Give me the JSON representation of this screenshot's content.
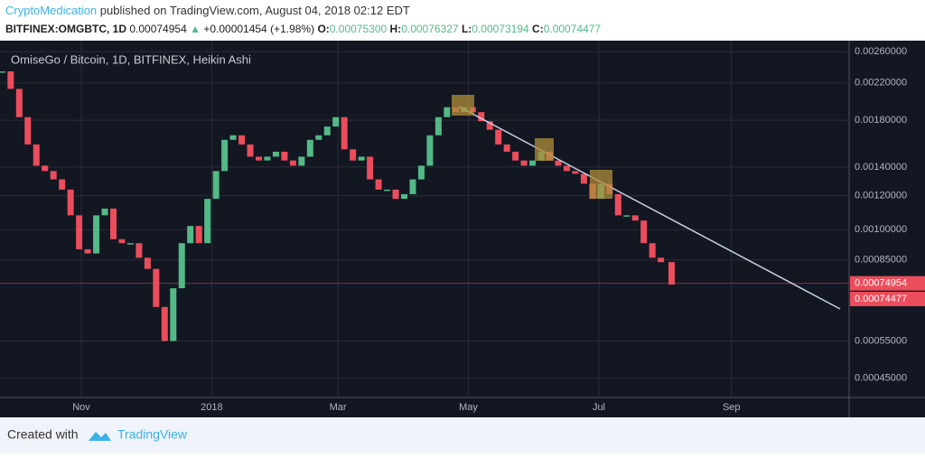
{
  "header": {
    "author": "CryptoMedication",
    "published": "published on TradingView.com, August 04, 2018 02:12 EDT",
    "symbol": "BITFINEX:OMGBTC, 1D",
    "last": "0.00074954",
    "arrow": "▲",
    "change": "+0.00001454 (+1.98%)",
    "open_label": "O:",
    "open": "0.00075300",
    "high_label": "H:",
    "high": "0.00076327",
    "low_label": "L:",
    "low": "0.00073194",
    "close_label": "C:",
    "close": "0.00074477"
  },
  "chart_data": {
    "type": "candlestick",
    "title": "OmiseGo / Bitcoin, 1D, BITFINEX, Heikin Ashi",
    "log_scale": true,
    "grid": true,
    "up_color": "#53b987",
    "down_color": "#eb4d5c",
    "x": [
      0,
      4,
      8,
      12,
      16,
      20,
      24,
      28,
      32,
      36,
      40,
      44,
      48,
      52,
      56,
      60,
      64,
      68,
      72,
      76,
      80,
      84,
      88,
      92,
      96,
      100,
      104,
      108,
      112,
      116,
      120,
      124,
      128,
      132,
      136,
      140,
      144,
      148,
      152,
      156,
      160,
      164,
      168,
      172,
      176,
      180,
      184,
      188,
      192,
      196,
      200,
      204,
      208,
      212,
      216,
      220,
      224,
      228,
      232,
      236,
      240,
      244,
      248,
      252,
      256,
      260,
      264,
      268,
      272,
      276,
      280,
      284,
      288,
      292,
      296,
      300,
      304,
      308,
      313
    ],
    "values": [
      0.00234,
      0.00213,
      0.00183,
      0.00158,
      0.00141,
      0.00137,
      0.00131,
      0.00124,
      0.00108,
      0.0009,
      0.00088,
      0.00108,
      0.00112,
      0.00095,
      0.00093,
      0.00093,
      0.00086,
      0.00081,
      0.00066,
      0.00055,
      0.00073,
      0.00093,
      0.00102,
      0.00093,
      0.00118,
      0.00137,
      0.00162,
      0.00166,
      0.00158,
      0.00148,
      0.00145,
      0.00148,
      0.00152,
      0.00145,
      0.00141,
      0.00148,
      0.00162,
      0.00166,
      0.00174,
      0.00183,
      0.00154,
      0.00145,
      0.00148,
      0.00131,
      0.00124,
      0.00124,
      0.00118,
      0.00121,
      0.00131,
      0.00141,
      0.00166,
      0.00183,
      0.00193,
      0.00188,
      0.00193,
      0.00188,
      0.00179,
      0.00171,
      0.00158,
      0.00152,
      0.00145,
      0.00141,
      0.00145,
      0.00152,
      0.00145,
      0.00141,
      0.00137,
      0.00135,
      0.00128,
      0.00118,
      0.00128,
      0.00121,
      0.00108,
      0.00108,
      0.00105,
      0.00093,
      0.00086,
      0.00084,
      0.00074477
    ],
    "xlim": [
      -1,
      396
    ],
    "xticks": [
      {
        "value": 37,
        "label": "Nov"
      },
      {
        "value": 98,
        "label": "2018"
      },
      {
        "value": 157,
        "label": "Mar"
      },
      {
        "value": 218,
        "label": "May"
      },
      {
        "value": 279,
        "label": "Jul"
      },
      {
        "value": 341,
        "label": "Sep"
      }
    ],
    "ylim": [
      0.000406,
      0.00276
    ],
    "yticks": [
      {
        "value": 0.0026,
        "label": "0.00260000"
      },
      {
        "value": 0.0022,
        "label": "0.00220000"
      },
      {
        "value": 0.0018,
        "label": "0.00180000"
      },
      {
        "value": 0.0014,
        "label": "0.00140000"
      },
      {
        "value": 0.0012,
        "label": "0.00120000"
      },
      {
        "value": 0.001,
        "label": "0.00100000"
      },
      {
        "value": 0.00085,
        "label": "0.00085000"
      },
      {
        "value": 0.00055,
        "label": "0.00055000"
      },
      {
        "value": 0.00045,
        "label": "0.00045000"
      }
    ],
    "price_labels": [
      {
        "value": 0.00074954,
        "label": "0.00074954"
      },
      {
        "value": 0.00074477,
        "label": "0.00074477"
      }
    ]
  },
  "footer": {
    "created": "Created with",
    "brand": "TradingView"
  }
}
